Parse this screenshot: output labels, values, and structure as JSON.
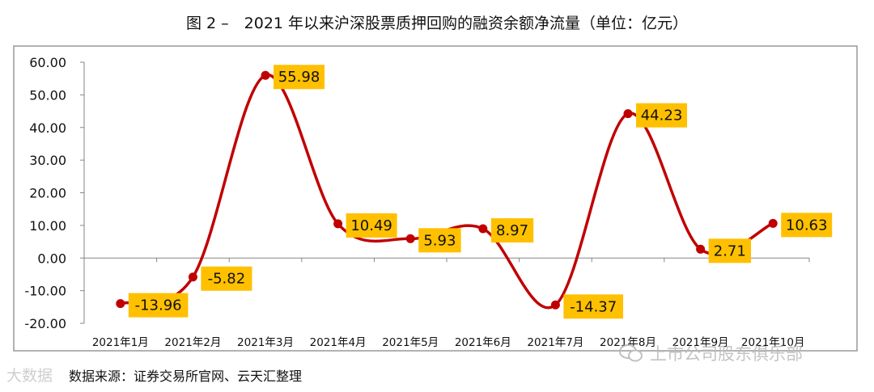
{
  "figure": {
    "title": "图 2 –　2021 年以来沪深股票质押回购的融资余额净流量（单位：亿元）",
    "source": "数据来源：证券交易所官网、云天汇整理",
    "watermark_left": "大数据",
    "watermark_right": "上市公司股东俱乐部"
  },
  "colors": {
    "line": "#c00000",
    "label_bg": "#ffc000",
    "axis": "#868686",
    "frame": "#999999"
  },
  "chart_data": {
    "type": "line",
    "title": "图 2 –　2021 年以来沪深股票质押回购的融资余额净流量（单位：亿元）",
    "categories": [
      "2021年1月",
      "2021年2月",
      "2021年3月",
      "2021年4月",
      "2021年5月",
      "2021年6月",
      "2021年7月",
      "2021年8月",
      "2021年9月",
      "2021年10月"
    ],
    "values": [
      -13.96,
      -5.82,
      55.98,
      10.49,
      5.93,
      8.97,
      -14.37,
      44.23,
      2.71,
      10.63
    ],
    "data_labels": [
      "-13.96",
      "-5.82",
      "55.98",
      "10.49",
      "5.93",
      "8.97",
      "-14.37",
      "44.23",
      "2.71",
      "10.63"
    ],
    "y_ticks": [
      "60.00",
      "50.00",
      "40.00",
      "30.00",
      "20.00",
      "10.00",
      "0.00",
      "-10.00",
      "-20.00"
    ],
    "ylim": [
      -20,
      60
    ],
    "grid": false,
    "smooth": true
  }
}
